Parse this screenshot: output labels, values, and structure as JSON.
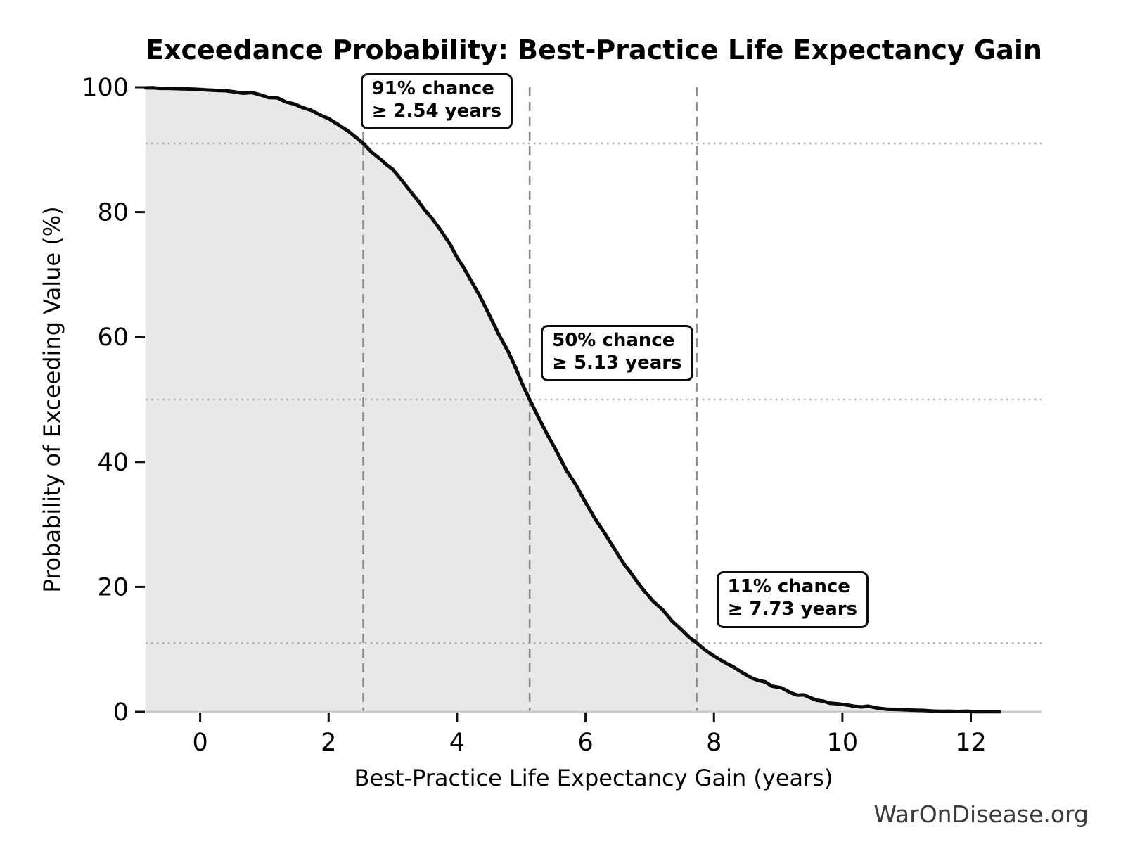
{
  "chart_data": {
    "type": "area",
    "title": "Exceedance Probability: Best-Practice Life Expectancy Gain",
    "xlabel": "Best-Practice Life Expectancy Gain (years)",
    "ylabel": "Probability of Exceeding Value (%)",
    "watermark": "WarOnDisease.org",
    "legend": "none",
    "grid": "threshold guide lines only",
    "xlim": [
      -0.85,
      13.1
    ],
    "ylim": [
      0,
      100
    ],
    "xticks": [
      0,
      2,
      4,
      6,
      8,
      10,
      12
    ],
    "yticks": [
      0,
      20,
      40,
      60,
      80,
      100
    ],
    "annotations": [
      {
        "line1": "91% chance",
        "line2": "≥ 2.54 years",
        "x": 2.54,
        "probability_pct": 91
      },
      {
        "line1": "50% chance",
        "line2": "≥ 5.13 years",
        "x": 5.13,
        "probability_pct": 50
      },
      {
        "line1": "11% chance",
        "line2": "≥ 7.73 years",
        "x": 7.73,
        "probability_pct": 11
      }
    ],
    "colors": {
      "curve": "#0a0a0a",
      "fill": "#e8e8e8",
      "dashed_guide": "#8a8a8a",
      "dotted_guide": "#b0b0b0",
      "spine": "#cbcbcb",
      "tick": "#111111",
      "text": "#000000",
      "watermark": "#3c3c3c"
    },
    "curve": {
      "series_name": "Exceedance probability (1 - CDF)",
      "points": [
        [
          -0.85,
          99.9
        ],
        [
          -0.4,
          99.8
        ],
        [
          0.0,
          99.65
        ],
        [
          0.4,
          99.4
        ],
        [
          0.8,
          98.9
        ],
        [
          1.2,
          98.1
        ],
        [
          1.6,
          96.8
        ],
        [
          2.0,
          94.9
        ],
        [
          2.3,
          93.2
        ],
        [
          2.54,
          91.0
        ],
        [
          2.8,
          88.7
        ],
        [
          3.0,
          86.6
        ],
        [
          3.3,
          83.1
        ],
        [
          3.6,
          79.1
        ],
        [
          3.9,
          74.5
        ],
        [
          4.2,
          69.3
        ],
        [
          4.5,
          63.6
        ],
        [
          4.8,
          57.5
        ],
        [
          5.13,
          50.0
        ],
        [
          5.4,
          44.7
        ],
        [
          5.7,
          38.9
        ],
        [
          6.0,
          33.5
        ],
        [
          6.3,
          28.4
        ],
        [
          6.6,
          23.8
        ],
        [
          6.9,
          19.7
        ],
        [
          7.2,
          16.2
        ],
        [
          7.5,
          13.3
        ],
        [
          7.73,
          11.0
        ],
        [
          8.0,
          9.0
        ],
        [
          8.3,
          7.2
        ],
        [
          8.6,
          5.6
        ],
        [
          8.9,
          4.3
        ],
        [
          9.2,
          3.2
        ],
        [
          9.5,
          2.3
        ],
        [
          9.8,
          1.6
        ],
        [
          10.1,
          1.05
        ],
        [
          10.4,
          0.7
        ],
        [
          10.7,
          0.45
        ],
        [
          11.0,
          0.28
        ],
        [
          11.4,
          0.15
        ],
        [
          11.8,
          0.08
        ],
        [
          12.2,
          0.04
        ],
        [
          12.45,
          0.02
        ]
      ]
    }
  }
}
